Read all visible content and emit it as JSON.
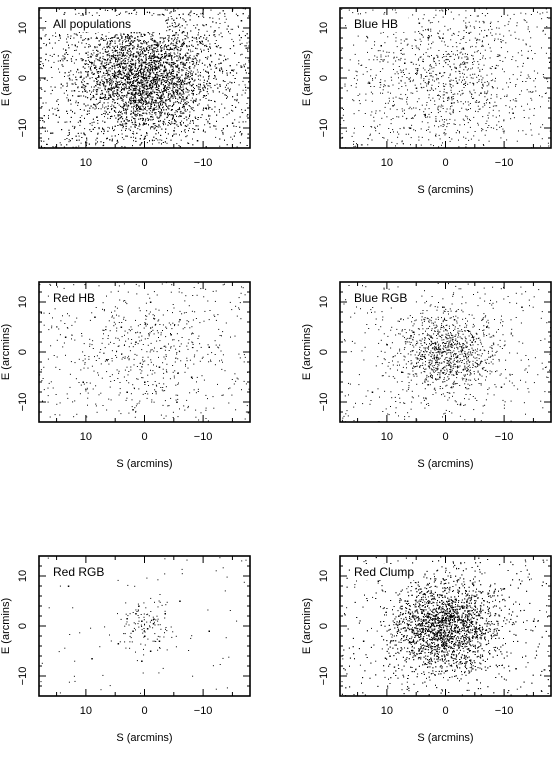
{
  "chart_data": [
    {
      "type": "scatter",
      "title": "All populations",
      "xlabel": "S (arcmins)",
      "ylabel": "E (arcmins)",
      "xlim": [
        18,
        -18
      ],
      "ylim": [
        -14,
        14
      ],
      "xticks": [
        10,
        0,
        -10
      ],
      "xtick_labels": [
        "10",
        "0",
        "−10"
      ],
      "yticks": [
        10,
        0,
        -10
      ],
      "ytick_labels": [
        "10",
        "0",
        "−10"
      ],
      "grid": false,
      "series": [
        {
          "points": [
            [
              1.0,
              0.5
            ],
            [
              -0.5,
              1.5
            ],
            [
              2.0,
              -1.0
            ],
            [
              -1.5,
              -0.5
            ],
            [
              0.5,
              2.5
            ],
            [
              -2.0,
              2.0
            ],
            [
              3.0,
              0.0
            ],
            [
              -3.5,
              -1.5
            ],
            [
              1.5,
              -3.0
            ],
            [
              -0.5,
              -3.5
            ],
            [
              4.0,
              3.0
            ],
            [
              -4.5,
              1.0
            ],
            [
              2.5,
              4.5
            ],
            [
              -2.5,
              -4.0
            ],
            [
              5.5,
              -2.0
            ],
            [
              -5.5,
              3.5
            ],
            [
              0.0,
              5.5
            ],
            [
              6.5,
              1.5
            ],
            [
              -6.0,
              -3.0
            ],
            [
              3.5,
              -5.5
            ],
            [
              -1.0,
              -6.0
            ],
            [
              7.5,
              -4.0
            ],
            [
              -7.0,
              4.5
            ],
            [
              8.5,
              2.0
            ],
            [
              -8.0,
              -1.5
            ],
            [
              10.0,
              5.0
            ],
            [
              -10.5,
              -6.0
            ],
            [
              12.0,
              -2.5
            ],
            [
              -13.0,
              3.0
            ],
            [
              14.5,
              8.5
            ],
            [
              -15.0,
              -9.0
            ],
            [
              6.0,
              10.0
            ],
            [
              -5.0,
              -10.5
            ],
            [
              16.0,
              -11.0
            ],
            [
              -16.5,
              11.5
            ],
            [
              11.0,
              -8.5
            ],
            [
              -12.0,
              9.5
            ],
            [
              0.0,
              -12.0
            ],
            [
              -9.0,
              -12.5
            ]
          ]
        }
      ]
    },
    {
      "type": "scatter",
      "title": "Blue HB",
      "xlabel": "S (arcmins)",
      "ylabel": "E (arcmins)",
      "xlim": [
        18,
        -18
      ],
      "ylim": [
        -14,
        14
      ],
      "xticks": [
        10,
        0,
        -10
      ],
      "xtick_labels": [
        "10",
        "0",
        "−10"
      ],
      "yticks": [
        10,
        0,
        -10
      ],
      "ytick_labels": [
        "10",
        "0",
        "−10"
      ],
      "grid": false,
      "series": [
        {
          "points": [
            [
              2.0,
              4.0
            ],
            [
              -3.0,
              6.0
            ],
            [
              5.0,
              -2.0
            ],
            [
              -1.0,
              -5.0
            ],
            [
              7.0,
              3.0
            ],
            [
              -6.0,
              -3.0
            ],
            [
              0.5,
              8.0
            ],
            [
              3.5,
              -7.5
            ],
            [
              -8.5,
              2.0
            ],
            [
              9.0,
              -5.5
            ],
            [
              -4.0,
              9.0
            ],
            [
              1.0,
              1.0
            ],
            [
              -2.0,
              -1.0
            ],
            [
              11.0,
              6.5
            ],
            [
              -11.5,
              -7.0
            ],
            [
              6.0,
              -10.0
            ],
            [
              -7.0,
              8.5
            ],
            [
              13.0,
              -1.0
            ],
            [
              -14.0,
              4.0
            ],
            [
              4.5,
              11.0
            ]
          ]
        }
      ]
    },
    {
      "type": "scatter",
      "title": "Red HB",
      "xlabel": "S (arcmins)",
      "ylabel": "E (arcmins)",
      "xlim": [
        18,
        -18
      ],
      "ylim": [
        -14,
        14
      ],
      "xticks": [
        10,
        0,
        -10
      ],
      "xtick_labels": [
        "10",
        "0",
        "−10"
      ],
      "yticks": [
        10,
        0,
        -10
      ],
      "ytick_labels": [
        "10",
        "0",
        "−10"
      ],
      "grid": false,
      "series": [
        {
          "points": [
            [
              1.5,
              2.0
            ],
            [
              -2.5,
              -3.0
            ],
            [
              4.0,
              5.0
            ],
            [
              -4.5,
              3.5
            ],
            [
              0.0,
              -6.0
            ],
            [
              6.5,
              -1.5
            ],
            [
              -6.0,
              6.5
            ],
            [
              3.0,
              -8.0
            ],
            [
              -8.0,
              -5.0
            ],
            [
              8.5,
              7.0
            ],
            [
              -1.0,
              10.0
            ],
            [
              10.5,
              -6.0
            ],
            [
              -11.0,
              1.0
            ],
            [
              2.0,
              -11.5
            ],
            [
              -5.5,
              -10.0
            ],
            [
              13.5,
              3.0
            ]
          ]
        }
      ]
    },
    {
      "type": "scatter",
      "title": "Blue RGB",
      "xlabel": "S (arcmins)",
      "ylabel": "E (arcmins)",
      "xlim": [
        18,
        -18
      ],
      "ylim": [
        -14,
        14
      ],
      "xticks": [
        10,
        0,
        -10
      ],
      "xtick_labels": [
        "10",
        "0",
        "−10"
      ],
      "yticks": [
        10,
        0,
        -10
      ],
      "ytick_labels": [
        "10",
        "0",
        "−10"
      ],
      "grid": false,
      "series": [
        {
          "points": [
            [
              0.5,
              0.0
            ],
            [
              -1.0,
              1.5
            ],
            [
              1.5,
              -2.0
            ],
            [
              -2.0,
              -1.0
            ],
            [
              2.5,
              3.0
            ],
            [
              -3.0,
              -3.5
            ],
            [
              0.0,
              4.5
            ],
            [
              4.0,
              -0.5
            ],
            [
              -4.5,
              2.0
            ],
            [
              1.0,
              -5.0
            ],
            [
              -5.5,
              -2.5
            ],
            [
              5.5,
              4.0
            ],
            [
              -1.5,
              6.5
            ],
            [
              3.0,
              -6.5
            ],
            [
              -7.0,
              5.0
            ],
            [
              7.5,
              -4.0
            ],
            [
              0.5,
              9.0
            ],
            [
              -9.5,
              -7.0
            ],
            [
              10.0,
              1.5
            ],
            [
              -2.5,
              -10.5
            ],
            [
              12.5,
              -8.0
            ],
            [
              -13.0,
              9.0
            ]
          ]
        }
      ]
    },
    {
      "type": "scatter",
      "title": "Red RGB",
      "xlabel": "S (arcmins)",
      "ylabel": "E (arcmins)",
      "xlim": [
        18,
        -18
      ],
      "ylim": [
        -14,
        14
      ],
      "xticks": [
        10,
        0,
        -10
      ],
      "xtick_labels": [
        "10",
        "0",
        "−10"
      ],
      "yticks": [
        10,
        0,
        -10
      ],
      "ytick_labels": [
        "10",
        "0",
        "−10"
      ],
      "grid": false,
      "series": [
        {
          "points": [
            [
              0.5,
              1.0
            ],
            [
              -0.5,
              -0.5
            ],
            [
              1.5,
              2.5
            ],
            [
              -1.5,
              0.5
            ],
            [
              0.0,
              -2.0
            ],
            [
              2.0,
              -1.0
            ],
            [
              -2.5,
              -3.0
            ],
            [
              1.0,
              4.0
            ],
            [
              -1.0,
              -5.0
            ],
            [
              3.0,
              1.5
            ],
            [
              -3.5,
              2.5
            ],
            [
              0.5,
              -7.0
            ],
            [
              4.5,
              -3.5
            ],
            [
              -6.0,
              5.0
            ],
            [
              9.0,
              -6.5
            ],
            [
              -11.0,
              -1.0
            ],
            [
              13.0,
              8.0
            ]
          ]
        }
      ]
    },
    {
      "type": "scatter",
      "title": "Red Clump",
      "xlabel": "S (arcmins)",
      "ylabel": "E (arcmins)",
      "xlim": [
        18,
        -18
      ],
      "ylim": [
        -14,
        14
      ],
      "xticks": [
        10,
        0,
        -10
      ],
      "xtick_labels": [
        "10",
        "0",
        "−10"
      ],
      "yticks": [
        10,
        0,
        -10
      ],
      "ytick_labels": [
        "10",
        "0",
        "−10"
      ],
      "grid": false,
      "series": [
        {
          "points": [
            [
              0.0,
              1.5
            ],
            [
              1.0,
              0.0
            ],
            [
              -1.0,
              2.0
            ],
            [
              2.0,
              -1.5
            ],
            [
              -2.0,
              -1.0
            ],
            [
              0.5,
              3.5
            ],
            [
              -3.0,
              1.0
            ],
            [
              3.0,
              2.5
            ],
            [
              -1.5,
              -3.5
            ],
            [
              2.5,
              -4.0
            ],
            [
              -4.0,
              -2.5
            ],
            [
              4.5,
              0.5
            ],
            [
              -0.5,
              5.0
            ],
            [
              5.5,
              -3.0
            ],
            [
              -5.0,
              4.0
            ],
            [
              1.5,
              -6.0
            ],
            [
              -6.5,
              -1.5
            ],
            [
              6.5,
              5.0
            ],
            [
              -3.5,
              7.0
            ],
            [
              3.5,
              -7.5
            ],
            [
              -7.5,
              -5.5
            ],
            [
              8.0,
              2.0
            ],
            [
              -8.5,
              2.5
            ],
            [
              0.0,
              -9.0
            ],
            [
              9.5,
              -6.0
            ],
            [
              -10.0,
              7.5
            ],
            [
              11.5,
              9.0
            ],
            [
              -12.0,
              -8.5
            ],
            [
              14.0,
              -3.0
            ],
            [
              -15.0,
              1.0
            ]
          ]
        }
      ]
    }
  ]
}
